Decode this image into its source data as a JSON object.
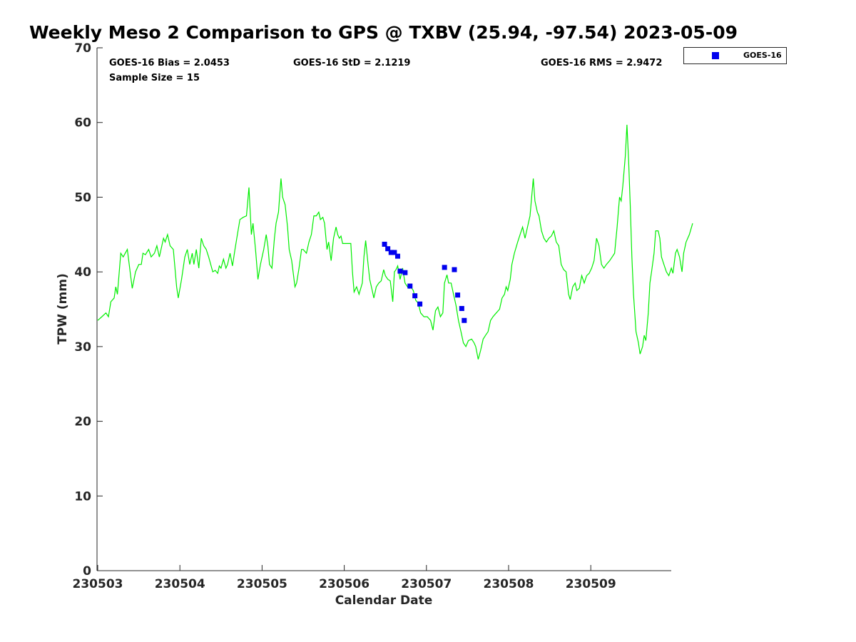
{
  "chart_data": {
    "type": "scatter",
    "title": "Weekly Meso 2 Comparison to GPS @ TXBV (25.94, -97.54) 2023-05-09",
    "xlabel": "Calendar Date",
    "ylabel": "TPW (mm)",
    "xlim": [
      "230503",
      "230510"
    ],
    "ylim": [
      0,
      70
    ],
    "yticks": [
      0,
      10,
      20,
      30,
      40,
      50,
      60,
      70
    ],
    "xticks": [
      "230503",
      "230504",
      "230505",
      "230506",
      "230507",
      "230508",
      "230509"
    ],
    "grid": false,
    "legend_placement": "outside-top-right",
    "stats": {
      "bias": "GOES-16 Bias = 2.0453",
      "std": "GOES-16 StD = 2.1219",
      "rms": "GOES-16 RMS = 2.9472",
      "sample": "Sample Size = 15"
    },
    "series": [
      {
        "kind": "line",
        "color": "#00ee00",
        "points": [
          [
            0.0,
            33.5
          ],
          [
            0.05,
            34.0
          ],
          [
            0.1,
            34.5
          ],
          [
            0.13,
            34.0
          ],
          [
            0.16,
            36.0
          ],
          [
            0.2,
            36.5
          ],
          [
            0.22,
            38.0
          ],
          [
            0.24,
            37.0
          ],
          [
            0.28,
            42.5
          ],
          [
            0.31,
            42.0
          ],
          [
            0.36,
            43.0
          ],
          [
            0.4,
            39.5
          ],
          [
            0.42,
            37.8
          ],
          [
            0.46,
            40.0
          ],
          [
            0.5,
            41.0
          ],
          [
            0.53,
            41.0
          ],
          [
            0.55,
            42.5
          ],
          [
            0.58,
            42.3
          ],
          [
            0.62,
            43.0
          ],
          [
            0.65,
            42.0
          ],
          [
            0.69,
            42.5
          ],
          [
            0.72,
            43.5
          ],
          [
            0.75,
            42.0
          ],
          [
            0.8,
            44.5
          ],
          [
            0.82,
            44.0
          ],
          [
            0.85,
            45.0
          ],
          [
            0.88,
            43.5
          ],
          [
            0.92,
            43.0
          ],
          [
            0.96,
            38.0
          ],
          [
            0.98,
            36.5
          ],
          [
            1.02,
            39.0
          ],
          [
            1.06,
            42.0
          ],
          [
            1.09,
            43.0
          ],
          [
            1.12,
            41.0
          ],
          [
            1.15,
            42.5
          ],
          [
            1.17,
            41.0
          ],
          [
            1.2,
            43.0
          ],
          [
            1.23,
            40.5
          ],
          [
            1.26,
            44.5
          ],
          [
            1.29,
            43.5
          ],
          [
            1.32,
            43.0
          ],
          [
            1.35,
            42.0
          ],
          [
            1.4,
            40.0
          ],
          [
            1.43,
            40.2
          ],
          [
            1.46,
            39.8
          ],
          [
            1.48,
            40.8
          ],
          [
            1.5,
            40.5
          ],
          [
            1.53,
            41.7
          ],
          [
            1.56,
            40.5
          ],
          [
            1.58,
            41.0
          ],
          [
            1.61,
            42.5
          ],
          [
            1.64,
            40.8
          ],
          [
            1.67,
            43.0
          ],
          [
            1.7,
            45.0
          ],
          [
            1.73,
            47.0
          ],
          [
            1.77,
            47.3
          ],
          [
            1.81,
            47.5
          ],
          [
            1.84,
            51.3
          ],
          [
            1.87,
            45.0
          ],
          [
            1.89,
            46.5
          ],
          [
            1.92,
            43.0
          ],
          [
            1.95,
            39.0
          ],
          [
            1.98,
            41.0
          ],
          [
            2.02,
            43.0
          ],
          [
            2.05,
            45.0
          ],
          [
            2.07,
            43.5
          ],
          [
            2.09,
            41.0
          ],
          [
            2.12,
            40.5
          ],
          [
            2.15,
            44.5
          ],
          [
            2.17,
            46.5
          ],
          [
            2.2,
            48.0
          ],
          [
            2.23,
            52.5
          ],
          [
            2.25,
            50.0
          ],
          [
            2.28,
            49.0
          ],
          [
            2.31,
            46.0
          ],
          [
            2.33,
            43.0
          ],
          [
            2.36,
            41.5
          ],
          [
            2.4,
            38.0
          ],
          [
            2.42,
            38.5
          ],
          [
            2.45,
            40.5
          ],
          [
            2.48,
            43.0
          ],
          [
            2.5,
            43.0
          ],
          [
            2.54,
            42.5
          ],
          [
            2.57,
            44.0
          ],
          [
            2.6,
            45.0
          ],
          [
            2.63,
            47.5
          ],
          [
            2.66,
            47.5
          ],
          [
            2.69,
            48.0
          ],
          [
            2.71,
            47.0
          ],
          [
            2.74,
            47.3
          ],
          [
            2.76,
            46.5
          ],
          [
            2.79,
            43.0
          ],
          [
            2.81,
            44.0
          ],
          [
            2.84,
            41.5
          ],
          [
            2.87,
            44.5
          ],
          [
            2.9,
            46.0
          ],
          [
            2.92,
            45.0
          ],
          [
            2.94,
            44.5
          ],
          [
            2.96,
            44.8
          ],
          [
            2.98,
            43.8
          ],
          [
            3.03,
            43.8
          ],
          [
            3.08,
            43.8
          ],
          [
            3.1,
            40.0
          ],
          [
            3.12,
            37.3
          ],
          [
            3.15,
            38.0
          ],
          [
            3.18,
            37.0
          ],
          [
            3.22,
            38.5
          ],
          [
            3.24,
            42.0
          ],
          [
            3.26,
            44.2
          ],
          [
            3.29,
            41.0
          ],
          [
            3.31,
            39.0
          ],
          [
            3.34,
            37.5
          ],
          [
            3.36,
            36.5
          ],
          [
            3.39,
            38.0
          ],
          [
            3.42,
            38.5
          ],
          [
            3.45,
            38.8
          ],
          [
            3.48,
            40.3
          ],
          [
            3.5,
            39.5
          ],
          [
            3.53,
            39.0
          ],
          [
            3.56,
            38.8
          ],
          [
            3.59,
            36.0
          ],
          [
            3.61,
            40.0
          ],
          [
            3.63,
            40.3
          ],
          [
            3.65,
            40.8
          ],
          [
            3.68,
            39.0
          ],
          [
            3.71,
            40.5
          ],
          [
            3.74,
            38.5
          ],
          [
            3.77,
            38.0
          ],
          [
            3.79,
            37.8
          ],
          [
            3.81,
            38.0
          ],
          [
            3.84,
            37.5
          ],
          [
            3.87,
            36.2
          ],
          [
            3.9,
            35.8
          ],
          [
            3.93,
            34.5
          ],
          [
            3.97,
            34.0
          ],
          [
            4.01,
            34.0
          ],
          [
            4.05,
            33.5
          ],
          [
            4.08,
            32.2
          ],
          [
            4.11,
            34.8
          ],
          [
            4.14,
            35.3
          ],
          [
            4.17,
            34.0
          ],
          [
            4.2,
            34.5
          ],
          [
            4.22,
            38.5
          ],
          [
            4.25,
            39.6
          ],
          [
            4.27,
            38.5
          ],
          [
            4.3,
            38.5
          ],
          [
            4.33,
            37.0
          ],
          [
            4.36,
            35.5
          ],
          [
            4.39,
            33.5
          ],
          [
            4.42,
            32.0
          ],
          [
            4.45,
            30.5
          ],
          [
            4.48,
            30.0
          ],
          [
            4.51,
            30.8
          ],
          [
            4.55,
            31.0
          ],
          [
            4.58,
            30.5
          ],
          [
            4.6,
            30.0
          ],
          [
            4.63,
            28.3
          ],
          [
            4.66,
            29.5
          ],
          [
            4.69,
            31.0
          ],
          [
            4.72,
            31.5
          ],
          [
            4.75,
            32.0
          ],
          [
            4.78,
            33.5
          ],
          [
            4.81,
            34.0
          ],
          [
            4.85,
            34.5
          ],
          [
            4.89,
            35.0
          ],
          [
            4.92,
            36.5
          ],
          [
            4.95,
            37.0
          ],
          [
            4.97,
            38.0
          ],
          [
            4.99,
            37.5
          ],
          [
            5.02,
            39.0
          ],
          [
            5.04,
            41.0
          ],
          [
            5.07,
            42.5
          ],
          [
            5.11,
            44.0
          ],
          [
            5.14,
            45.0
          ],
          [
            5.17,
            46.0
          ],
          [
            5.2,
            44.5
          ],
          [
            5.23,
            46.0
          ],
          [
            5.26,
            47.5
          ],
          [
            5.3,
            52.5
          ],
          [
            5.32,
            49.5
          ],
          [
            5.35,
            48.0
          ],
          [
            5.37,
            47.5
          ],
          [
            5.4,
            45.5
          ],
          [
            5.43,
            44.5
          ],
          [
            5.46,
            44.0
          ],
          [
            5.49,
            44.5
          ],
          [
            5.52,
            44.8
          ],
          [
            5.55,
            45.5
          ],
          [
            5.58,
            44.0
          ],
          [
            5.61,
            43.5
          ],
          [
            5.64,
            41.0
          ],
          [
            5.67,
            40.3
          ],
          [
            5.7,
            40.0
          ],
          [
            5.73,
            37.0
          ],
          [
            5.75,
            36.3
          ],
          [
            5.78,
            38.0
          ],
          [
            5.81,
            38.5
          ],
          [
            5.83,
            37.5
          ],
          [
            5.86,
            37.8
          ],
          [
            5.89,
            39.5
          ],
          [
            5.92,
            38.5
          ],
          [
            5.95,
            39.5
          ],
          [
            5.98,
            39.8
          ],
          [
            6.01,
            40.5
          ],
          [
            6.04,
            41.5
          ],
          [
            6.07,
            44.5
          ],
          [
            6.1,
            43.5
          ],
          [
            6.13,
            41.0
          ],
          [
            6.16,
            40.5
          ],
          [
            6.19,
            41.0
          ],
          [
            6.23,
            41.5
          ],
          [
            6.26,
            42.0
          ],
          [
            6.29,
            42.5
          ],
          [
            6.32,
            46.0
          ],
          [
            6.35,
            50.0
          ],
          [
            6.37,
            49.5
          ],
          [
            6.39,
            51.5
          ],
          [
            6.42,
            55.5
          ],
          [
            6.44,
            59.7
          ],
          [
            6.46,
            55.0
          ],
          [
            6.48,
            49.0
          ],
          [
            6.5,
            42.0
          ],
          [
            6.52,
            37.0
          ],
          [
            6.55,
            32.0
          ],
          [
            6.58,
            30.5
          ],
          [
            6.6,
            29.0
          ],
          [
            6.63,
            30.0
          ],
          [
            6.65,
            31.5
          ],
          [
            6.67,
            30.8
          ],
          [
            6.7,
            34.5
          ],
          [
            6.72,
            38.5
          ],
          [
            6.74,
            40.0
          ],
          [
            6.77,
            42.5
          ],
          [
            6.79,
            45.5
          ],
          [
            6.82,
            45.5
          ],
          [
            6.84,
            44.5
          ],
          [
            6.86,
            42.0
          ],
          [
            6.89,
            41.0
          ],
          [
            6.92,
            40.0
          ],
          [
            6.95,
            39.5
          ],
          [
            6.98,
            40.5
          ],
          [
            7.0,
            39.8
          ],
          [
            7.03,
            42.5
          ],
          [
            7.05,
            43.0
          ],
          [
            7.08,
            42.0
          ],
          [
            7.11,
            40.0
          ],
          [
            7.13,
            42.5
          ],
          [
            7.16,
            44.0
          ],
          [
            7.2,
            45.0
          ],
          [
            7.24,
            46.5
          ]
        ]
      },
      {
        "kind": "scatter",
        "name": "GOES-16",
        "color": "#0000ee",
        "points": [
          [
            3.49,
            43.7
          ],
          [
            3.53,
            43.1
          ],
          [
            3.57,
            42.6
          ],
          [
            3.61,
            42.6
          ],
          [
            3.65,
            42.1
          ],
          [
            3.68,
            40.1
          ],
          [
            3.74,
            39.9
          ],
          [
            3.8,
            38.1
          ],
          [
            3.86,
            36.8
          ],
          [
            3.92,
            35.7
          ],
          [
            4.22,
            40.6
          ],
          [
            4.34,
            40.3
          ],
          [
            4.38,
            36.9
          ],
          [
            4.43,
            35.1
          ],
          [
            4.46,
            33.5
          ]
        ]
      }
    ]
  }
}
